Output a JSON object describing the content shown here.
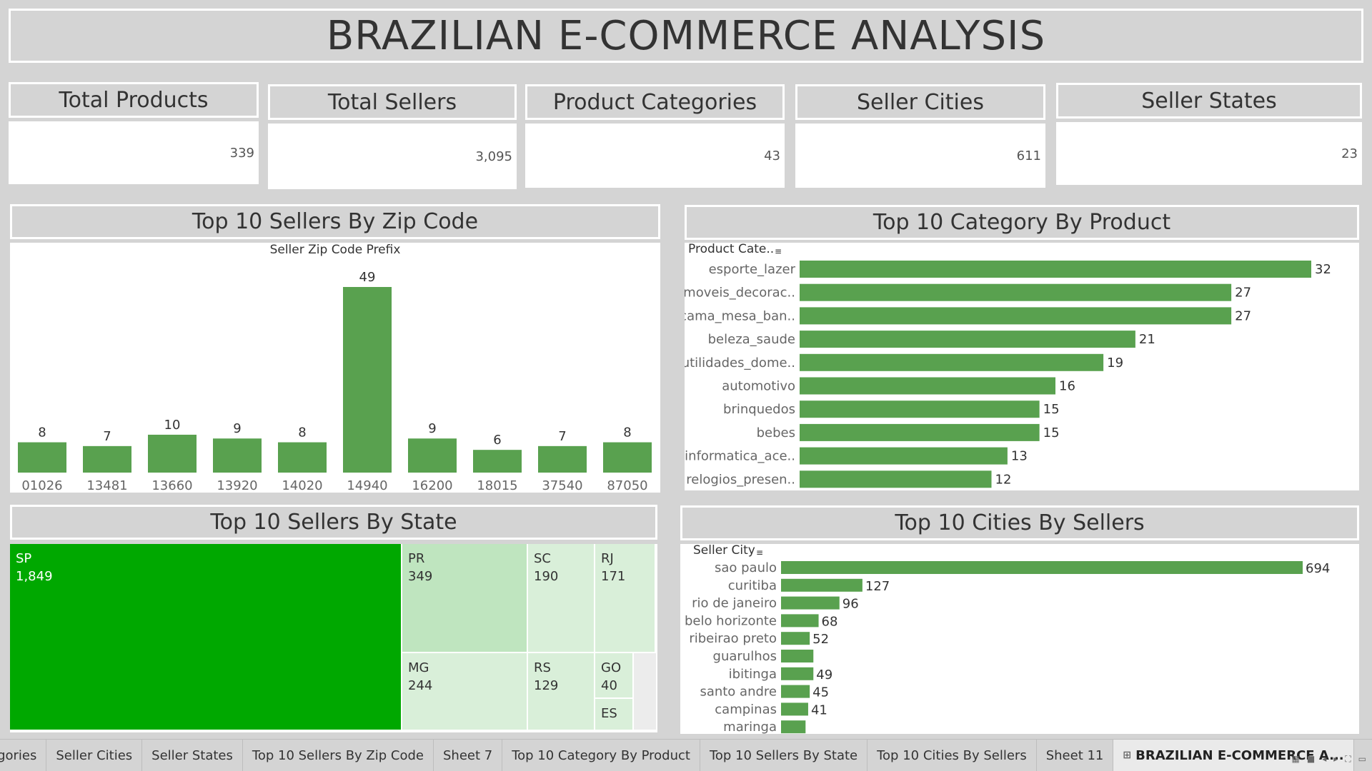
{
  "title": "BRAZILIAN E-COMMERCE ANALYSIS",
  "kpis": [
    {
      "label": "Total Products",
      "value": "339"
    },
    {
      "label": "Total Sellers",
      "value": "3,095"
    },
    {
      "label": "Product Categories",
      "value": "43"
    },
    {
      "label": "Seller Cities",
      "value": "611"
    },
    {
      "label": "Seller States",
      "value": "23"
    }
  ],
  "panels": {
    "zip": "Top 10 Sellers By Zip Code",
    "category": "Top 10 Category By Product",
    "state": "Top 10 Sellers By State",
    "city": "Top 10 Cities By Sellers"
  },
  "colors": {
    "bar": "#59a14f",
    "treemap_top": "#00a800",
    "treemap_mid": "#bfe5bf",
    "treemap_light": "#d9efd9",
    "treemap_faint": "#ececec"
  },
  "chart_data": [
    {
      "type": "bar",
      "header": "Seller Zip Code Prefix",
      "categories": [
        "01026",
        "13481",
        "13660",
        "13920",
        "14020",
        "14940",
        "16200",
        "18015",
        "37540",
        "87050"
      ],
      "values": [
        8,
        7,
        10,
        9,
        8,
        49,
        9,
        6,
        7,
        8
      ]
    },
    {
      "type": "bar",
      "orientation": "horizontal",
      "header": "Product Cate..",
      "categories": [
        "esporte_lazer",
        "moveis_decorac..",
        "cama_mesa_ban..",
        "beleza_saude",
        "utilidades_dome..",
        "automotivo",
        "brinquedos",
        "bebes",
        "informatica_ace..",
        "relogios_presen.."
      ],
      "values": [
        32,
        27,
        27,
        21,
        19,
        16,
        15,
        15,
        13,
        12
      ]
    },
    {
      "type": "treemap",
      "items": [
        {
          "label": "SP",
          "value": 1849
        },
        {
          "label": "PR",
          "value": 349
        },
        {
          "label": "MG",
          "value": 244
        },
        {
          "label": "SC",
          "value": 190
        },
        {
          "label": "RJ",
          "value": 171
        },
        {
          "label": "RS",
          "value": 129
        },
        {
          "label": "GO",
          "value": 40
        },
        {
          "label": "ES"
        }
      ]
    },
    {
      "type": "bar",
      "orientation": "horizontal",
      "header": "Seller City",
      "categories": [
        "sao paulo",
        "curitiba",
        "rio de janeiro",
        "belo horizonte",
        "ribeirao preto",
        "guarulhos",
        "ibitinga",
        "santo andre",
        "campinas",
        "maringa"
      ],
      "values": [
        694,
        127,
        96,
        68,
        52,
        null,
        49,
        45,
        41,
        null
      ],
      "value_labels": [
        "694",
        "127",
        "96",
        "68",
        "52",
        "",
        "49",
        "45",
        "41",
        ""
      ],
      "bar_fraction": [
        1,
        0.156,
        0.112,
        0.072,
        0.055,
        0.062,
        0.062,
        0.055,
        0.052,
        0.047
      ]
    }
  ],
  "tabs": [
    {
      "label": "egories"
    },
    {
      "label": "Seller Cities"
    },
    {
      "label": "Seller States"
    },
    {
      "label": "Top 10 Sellers By Zip Code"
    },
    {
      "label": "Sheet 7"
    },
    {
      "label": "Top 10 Category By Product"
    },
    {
      "label": "Top 10 Sellers By State"
    },
    {
      "label": "Top 10 Cities By Sellers"
    },
    {
      "label": "Sheet 11"
    },
    {
      "label": "BRAZILIAN E-COMMERCE A...",
      "active": true,
      "icon": "dashboard-icon"
    }
  ]
}
